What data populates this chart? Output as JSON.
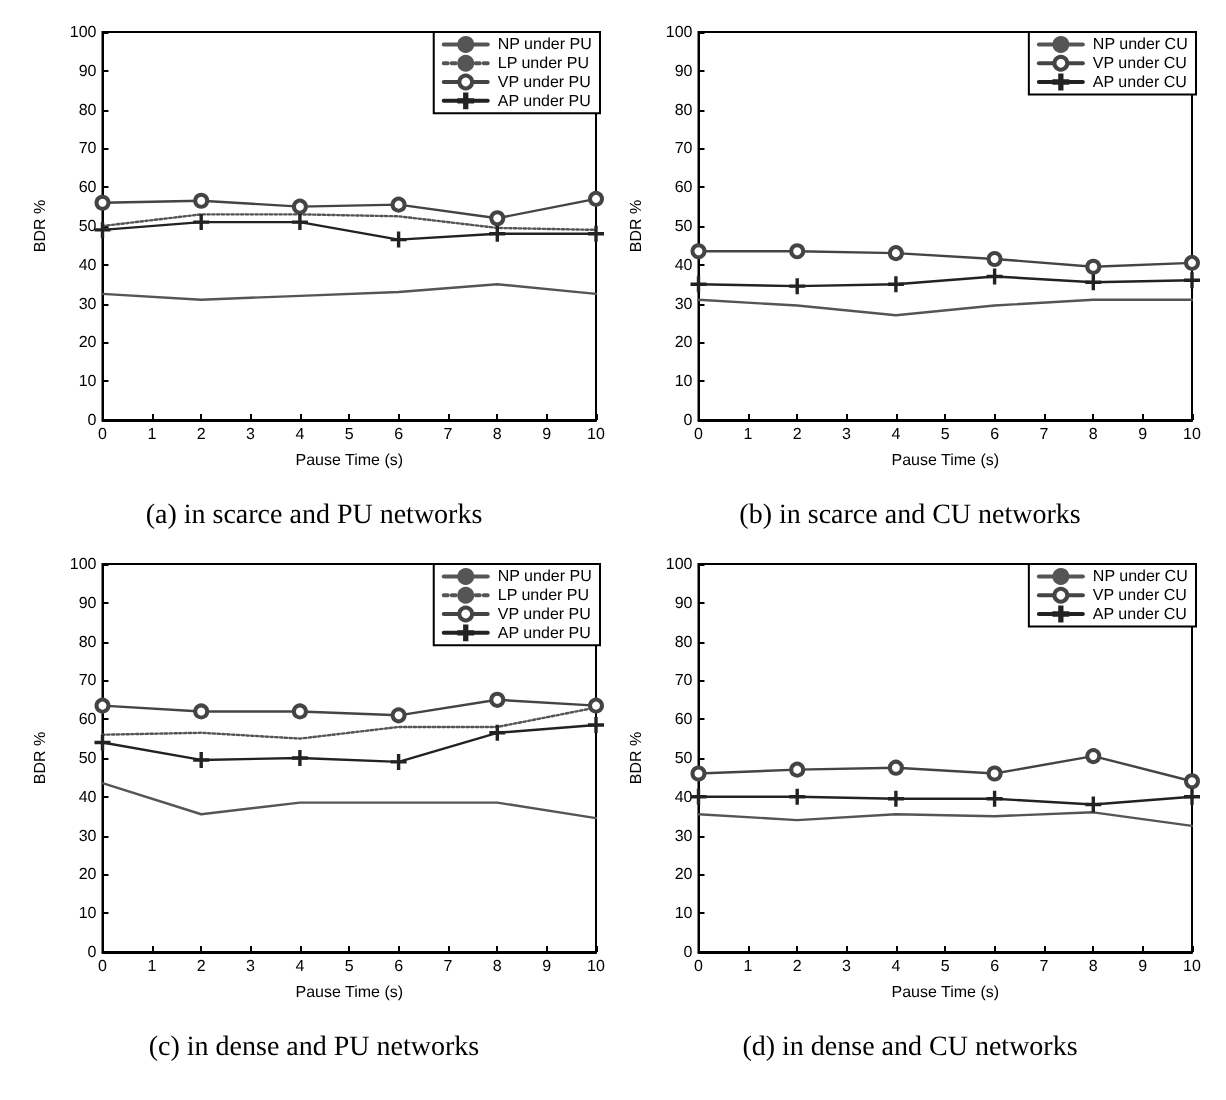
{
  "chart_data": [
    {
      "type": "line",
      "title": "(a) in scarce and PU networks",
      "xlabel": "Pause Time (s)",
      "ylabel": "BDR %",
      "x": [
        0,
        2,
        4,
        6,
        8,
        10
      ],
      "xlim": [
        0,
        10
      ],
      "xticks": [
        0,
        1,
        2,
        3,
        4,
        5,
        6,
        7,
        8,
        9,
        10
      ],
      "ylim": [
        0,
        100
      ],
      "yticks": [
        0,
        10,
        20,
        30,
        40,
        50,
        60,
        70,
        80,
        90,
        100
      ],
      "legend": "top right",
      "series": [
        {
          "name": "NP under PU",
          "color": "#555555",
          "marker": "none",
          "line_style": "solid",
          "values": [
            32.5,
            31,
            32,
            33,
            35,
            32.5
          ]
        },
        {
          "name": "LP under PU",
          "color": "#555555",
          "marker": "none",
          "line_style": "dotted",
          "values": [
            50,
            53,
            53,
            52.5,
            49.5,
            49
          ]
        },
        {
          "name": "VP under PU",
          "color": "#444444",
          "marker": "circle",
          "line_style": "solid",
          "values": [
            56,
            56.5,
            55,
            55.5,
            52,
            57
          ]
        },
        {
          "name": "AP under PU",
          "color": "#222222",
          "marker": "cross",
          "line_style": "solid",
          "values": [
            49,
            51,
            51,
            46.5,
            48,
            48
          ]
        }
      ]
    },
    {
      "type": "line",
      "title": "(b) in scarce and CU networks",
      "xlabel": "Pause Time (s)",
      "ylabel": "BDR %",
      "x": [
        0,
        2,
        4,
        6,
        8,
        10
      ],
      "xlim": [
        0,
        10
      ],
      "xticks": [
        0,
        1,
        2,
        3,
        4,
        5,
        6,
        7,
        8,
        9,
        10
      ],
      "ylim": [
        0,
        100
      ],
      "yticks": [
        0,
        10,
        20,
        30,
        40,
        50,
        60,
        70,
        80,
        90,
        100
      ],
      "legend": "top right",
      "series": [
        {
          "name": "NP under CU",
          "color": "#555555",
          "marker": "none",
          "line_style": "solid",
          "values": [
            31,
            29.5,
            27,
            29.5,
            31,
            31
          ]
        },
        {
          "name": "VP under CU",
          "color": "#444444",
          "marker": "circle",
          "line_style": "solid",
          "values": [
            43.5,
            43.5,
            43,
            41.5,
            39.5,
            40.5
          ]
        },
        {
          "name": "AP under CU",
          "color": "#222222",
          "marker": "cross",
          "line_style": "solid",
          "values": [
            35,
            34.5,
            35,
            37,
            35.5,
            36
          ]
        }
      ]
    },
    {
      "type": "line",
      "title": "(c) in dense and PU networks",
      "xlabel": "Pause Time (s)",
      "ylabel": "BDR %",
      "x": [
        0,
        2,
        4,
        6,
        8,
        10
      ],
      "xlim": [
        0,
        10
      ],
      "xticks": [
        0,
        1,
        2,
        3,
        4,
        5,
        6,
        7,
        8,
        9,
        10
      ],
      "ylim": [
        0,
        100
      ],
      "yticks": [
        0,
        10,
        20,
        30,
        40,
        50,
        60,
        70,
        80,
        90,
        100
      ],
      "legend": "top right",
      "series": [
        {
          "name": "NP under PU",
          "color": "#555555",
          "marker": "none",
          "line_style": "solid",
          "values": [
            43.5,
            35.5,
            38.5,
            38.5,
            38.5,
            34.5
          ]
        },
        {
          "name": "LP under PU",
          "color": "#555555",
          "marker": "none",
          "line_style": "dotted",
          "values": [
            56,
            56.5,
            55,
            58,
            58,
            63
          ]
        },
        {
          "name": "VP under PU",
          "color": "#444444",
          "marker": "circle",
          "line_style": "solid",
          "values": [
            63.5,
            62,
            62,
            61,
            65,
            63.5
          ]
        },
        {
          "name": "AP under PU",
          "color": "#222222",
          "marker": "cross",
          "line_style": "solid",
          "values": [
            54,
            49.5,
            50,
            49,
            56.5,
            58.5
          ]
        }
      ]
    },
    {
      "type": "line",
      "title": "(d) in dense and CU networks",
      "xlabel": "Pause Time (s)",
      "ylabel": "BDR %",
      "x": [
        0,
        2,
        4,
        6,
        8,
        10
      ],
      "xlim": [
        0,
        10
      ],
      "xticks": [
        0,
        1,
        2,
        3,
        4,
        5,
        6,
        7,
        8,
        9,
        10
      ],
      "ylim": [
        0,
        100
      ],
      "yticks": [
        0,
        10,
        20,
        30,
        40,
        50,
        60,
        70,
        80,
        90,
        100
      ],
      "legend": "top right",
      "series": [
        {
          "name": "NP under CU",
          "color": "#555555",
          "marker": "none",
          "line_style": "solid",
          "values": [
            35.5,
            34,
            35.5,
            35,
            36,
            32.5
          ]
        },
        {
          "name": "VP under CU",
          "color": "#444444",
          "marker": "circle",
          "line_style": "solid",
          "values": [
            46,
            47,
            47.5,
            46,
            50.5,
            44
          ]
        },
        {
          "name": "AP under CU",
          "color": "#222222",
          "marker": "cross",
          "line_style": "solid",
          "values": [
            40,
            40,
            39.5,
            39.5,
            38,
            40
          ]
        }
      ]
    }
  ]
}
